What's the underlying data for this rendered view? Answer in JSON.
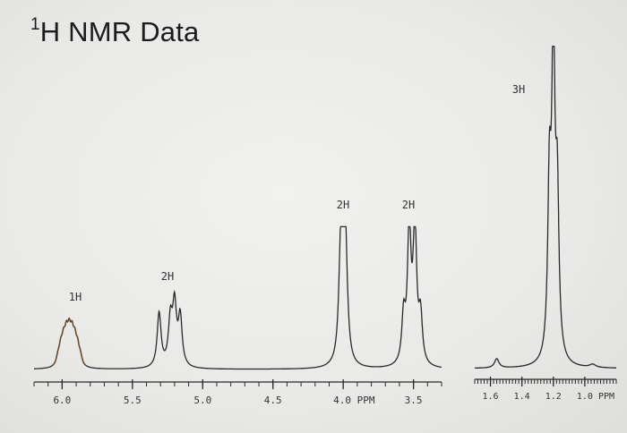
{
  "slide": {
    "title_sup": "1",
    "title_main": "H NMR Data"
  },
  "colors": {
    "background": "#ececea",
    "trace": "#2a2a2a",
    "multiplet_1h": "#6b4a2a",
    "axis_text": "#333333"
  },
  "chart_data": [
    {
      "type": "line",
      "title": "",
      "xlabel": "PPM",
      "ylabel": "",
      "x_reversed": true,
      "xlim": [
        6.2,
        3.3
      ],
      "ticks": [
        {
          "value": 6.0,
          "label": "6.0"
        },
        {
          "value": 5.5,
          "label": "5.5"
        },
        {
          "value": 5.0,
          "label": "5.0"
        },
        {
          "value": 4.5,
          "label": "4.5"
        },
        {
          "value": 4.0,
          "label": "4.0 PPM"
        },
        {
          "value": 3.5,
          "label": "3.5"
        }
      ],
      "peaks": [
        {
          "label": "1H",
          "multiplicity": "multiplet",
          "lines": [
            6.03,
            6.01,
            5.99,
            5.97,
            5.95,
            5.93,
            5.91,
            5.89,
            5.87
          ],
          "intensities": [
            0.06,
            0.12,
            0.16,
            0.19,
            0.2,
            0.19,
            0.16,
            0.12,
            0.06
          ]
        },
        {
          "label": "2H",
          "multiplicity": "multiplet",
          "lines": [
            5.31,
            5.23,
            5.2,
            5.16
          ],
          "intensities": [
            0.4,
            0.33,
            0.43,
            0.36
          ]
        },
        {
          "label": "2H",
          "multiplicity": "quartet",
          "lines": [
            4.015,
            3.985
          ],
          "intensities": [
            1.0,
            0.96
          ]
        },
        {
          "label": "2H",
          "multiplicity": "quartet",
          "lines": [
            3.57,
            3.53,
            3.49,
            3.45
          ],
          "intensities": [
            0.34,
            1.0,
            1.0,
            0.34
          ]
        }
      ]
    },
    {
      "type": "line",
      "title": "",
      "xlabel": "PPM",
      "ylabel": "",
      "x_reversed": true,
      "xlim": [
        1.7,
        0.8
      ],
      "ticks": [
        {
          "value": 1.6,
          "label": "1.6"
        },
        {
          "value": 1.4,
          "label": "1.4"
        },
        {
          "value": 1.2,
          "label": "1.2"
        },
        {
          "value": 1.0,
          "label": "1.0 PPM"
        }
      ],
      "peaks": [
        {
          "label": "",
          "multiplicity": "singlet",
          "lines": [
            1.56
          ],
          "intensities": [
            0.03
          ]
        },
        {
          "label": "3H",
          "multiplicity": "triplet",
          "lines": [
            1.225,
            1.2,
            1.175
          ],
          "intensities": [
            0.54,
            1.0,
            0.5
          ]
        },
        {
          "label": "",
          "multiplicity": "singlet",
          "lines": [
            0.95
          ],
          "intensities": [
            0.01
          ]
        }
      ]
    }
  ]
}
